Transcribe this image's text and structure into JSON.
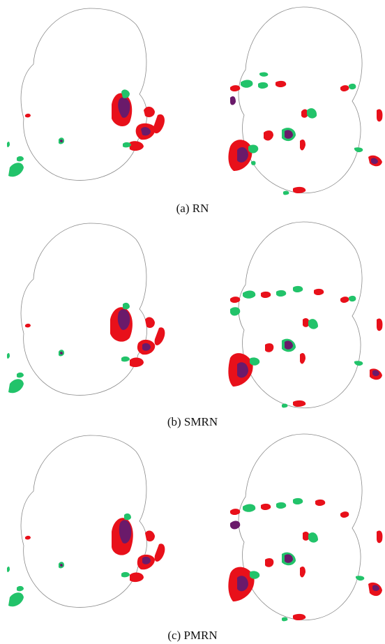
{
  "figure": {
    "panels": [
      {
        "id": "rn",
        "caption": "(a) RN"
      },
      {
        "id": "smrn",
        "caption": "(b) SMRN"
      },
      {
        "id": "pmrn",
        "caption": "(c) PMRN"
      }
    ],
    "colors": {
      "red": "#e8101a",
      "green": "#22c36a",
      "purple": "#6a1a6a",
      "outline": "#8a8a8a"
    }
  }
}
